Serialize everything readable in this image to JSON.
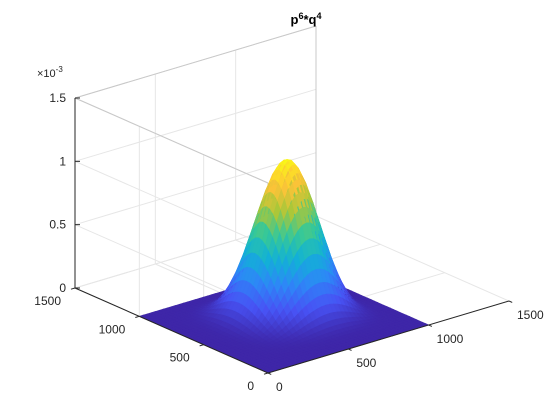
{
  "chart_data": {
    "type": "surface",
    "title": {
      "parts": [
        {
          "text": "p",
          "sup": false
        },
        {
          "text": "6",
          "sup": true
        },
        {
          "text": "*q",
          "sup": false
        },
        {
          "text": "4",
          "sup": true
        }
      ]
    },
    "expression": "p^6*q^4",
    "x": {
      "range": [
        0,
        1500
      ],
      "ticks": [
        0,
        500,
        1000,
        1500
      ],
      "tick_labels": [
        "0",
        "500",
        "1000",
        "1500"
      ]
    },
    "y": {
      "range": [
        0,
        1500
      ],
      "ticks": [
        0,
        500,
        1000,
        1500
      ],
      "tick_labels": [
        "0",
        "500",
        "1000",
        "1500"
      ]
    },
    "z": {
      "range": [
        0,
        0.0015
      ],
      "ticks": [
        0,
        0.0005,
        0.001,
        0.0015
      ],
      "tick_labels": [
        "0",
        "0.5",
        "1",
        "1.5"
      ],
      "exponent": {
        "base": "×10",
        "power": "-3"
      }
    },
    "grid": true,
    "colormap": "parula",
    "surface": {
      "x_max": 1000,
      "y_max": 1000,
      "peak": 0.00119,
      "peak_x": 600,
      "peak_y": 600,
      "sampling": 40
    }
  }
}
